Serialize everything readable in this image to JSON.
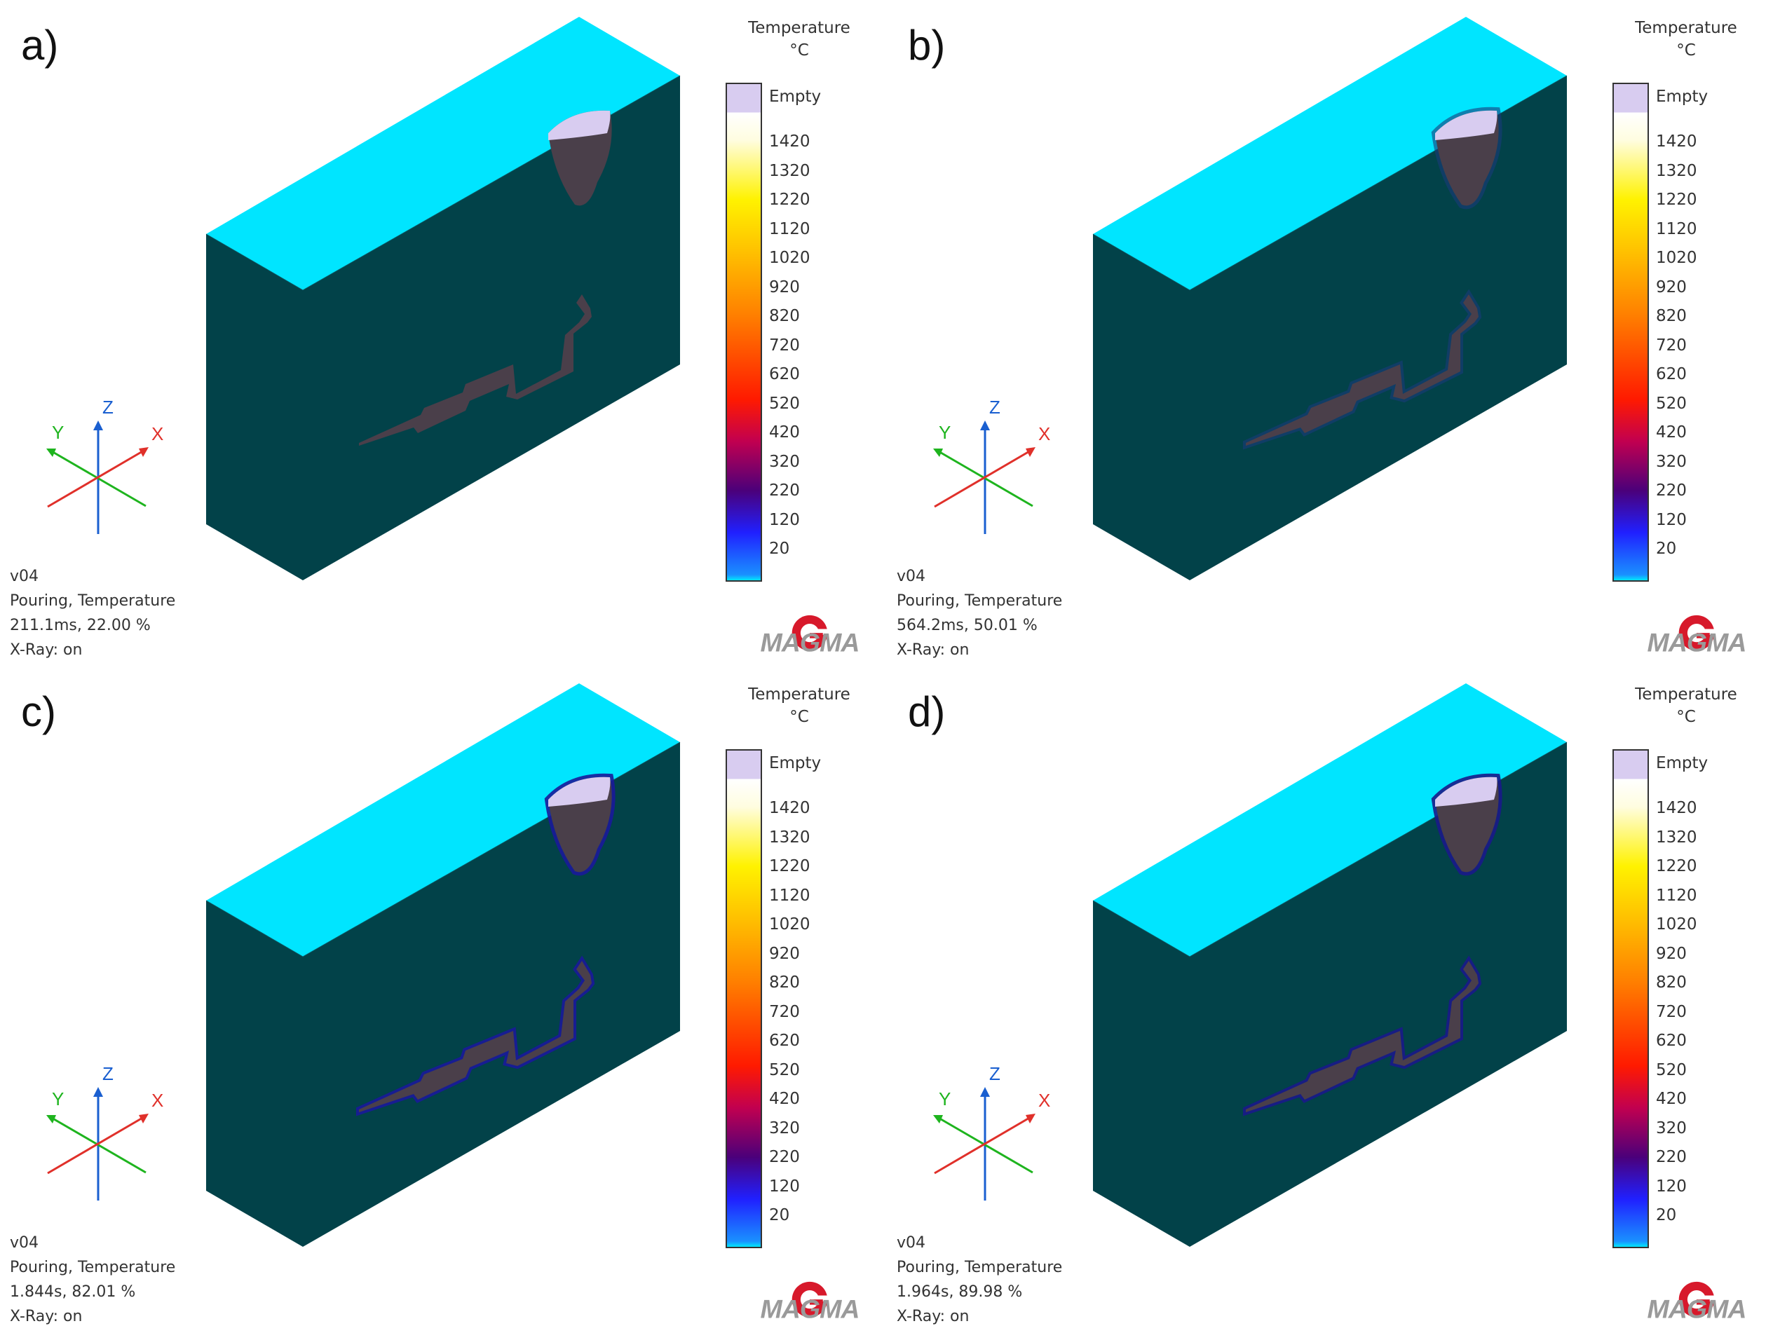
{
  "legend": {
    "title": "Temperature",
    "unit": "°C",
    "empty_label": "Empty",
    "ticks": [
      "1420",
      "1320",
      "1220",
      "1120",
      "1020",
      "920",
      "820",
      "720",
      "620",
      "520",
      "420",
      "320",
      "220",
      "120",
      "20"
    ]
  },
  "axes": {
    "x": "X",
    "y": "Y",
    "z": "Z"
  },
  "brand": "MAGMA",
  "colors": {
    "mold_top": "#00e5ff",
    "mold_face": "#024249",
    "casting": "#4a3f4a",
    "empty": "#d8ccf0",
    "axis_x": "#e0302a",
    "axis_y": "#1eb41e",
    "axis_z": "#1a5fd0"
  },
  "panels": [
    {
      "letter": "a)",
      "version": "v04",
      "result": "Pouring, Temperature",
      "time": "211.1ms, 22.00 %",
      "xray": "X-Ray: on"
    },
    {
      "letter": "b)",
      "version": "v04",
      "result": "Pouring, Temperature",
      "time": "564.2ms, 50.01 %",
      "xray": "X-Ray: on"
    },
    {
      "letter": "c)",
      "version": "v04",
      "result": "Pouring, Temperature",
      "time": "1.844s, 82.01 %",
      "xray": "X-Ray: on"
    },
    {
      "letter": "d)",
      "version": "v04",
      "result": "Pouring, Temperature",
      "time": "1.964s, 89.98 %",
      "xray": "X-Ray: on"
    }
  ]
}
